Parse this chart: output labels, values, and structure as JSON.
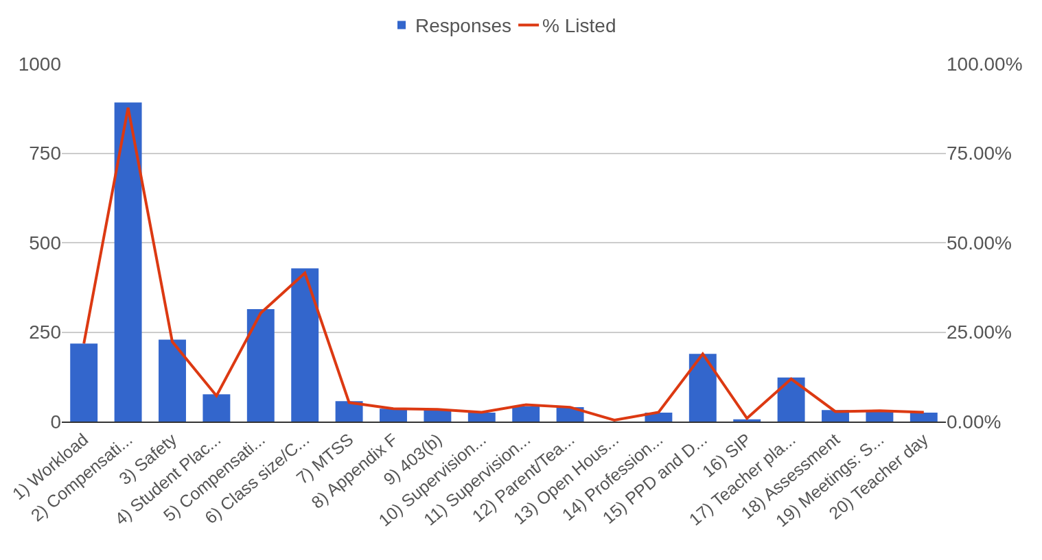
{
  "chart_data": {
    "type": "bar",
    "categories": [
      "1) Workload",
      "2) Compensati...",
      "3) Safety",
      "4) Student Plac...",
      "5) Compensati...",
      "6) Class size/C...",
      "7) MTSS",
      "8) Appendix F",
      "9) 403(b)",
      "10) Supervision...",
      "11) Supervision...",
      "12) Parent/Tea...",
      "13) Open Hous...",
      "14) Profession...",
      "15) PPD and D...",
      "16) SIP",
      "17) Teacher pla...",
      "18) Assessment",
      "19) Meetings: S...",
      "20) Teacher day"
    ],
    "series": [
      {
        "name": "Responses",
        "color": "#3366cc",
        "values": [
          218,
          892,
          229,
          76,
          314,
          428,
          57,
          36,
          34,
          25,
          42,
          40,
          0,
          25,
          189,
          6,
          123,
          32,
          28,
          25
        ]
      },
      {
        "name": "% Listed",
        "type": "line",
        "axis": "y2",
        "color": "#dc3912",
        "values": [
          21.8,
          87.7,
          22.3,
          7.2,
          30.3,
          41.5,
          5.3,
          3.6,
          3.4,
          2.6,
          4.7,
          4.0,
          0.4,
          2.6,
          18.9,
          0.9,
          11.9,
          2.8,
          3.0,
          2.6
        ]
      }
    ],
    "ylim": [
      0,
      1000
    ],
    "yticks": [
      0,
      250,
      500,
      750,
      1000
    ],
    "y2lim": [
      0,
      100
    ],
    "y2ticks": [
      {
        "value": 0,
        "label": "0.00%"
      },
      {
        "value": 25,
        "label": "25.00%"
      },
      {
        "value": 50,
        "label": "50.00%"
      },
      {
        "value": 75,
        "label": "75.00%"
      },
      {
        "value": 100,
        "label": "100.00%"
      }
    ],
    "grid": "y",
    "legend": "top",
    "marker": "none",
    "line_style": "solid"
  }
}
